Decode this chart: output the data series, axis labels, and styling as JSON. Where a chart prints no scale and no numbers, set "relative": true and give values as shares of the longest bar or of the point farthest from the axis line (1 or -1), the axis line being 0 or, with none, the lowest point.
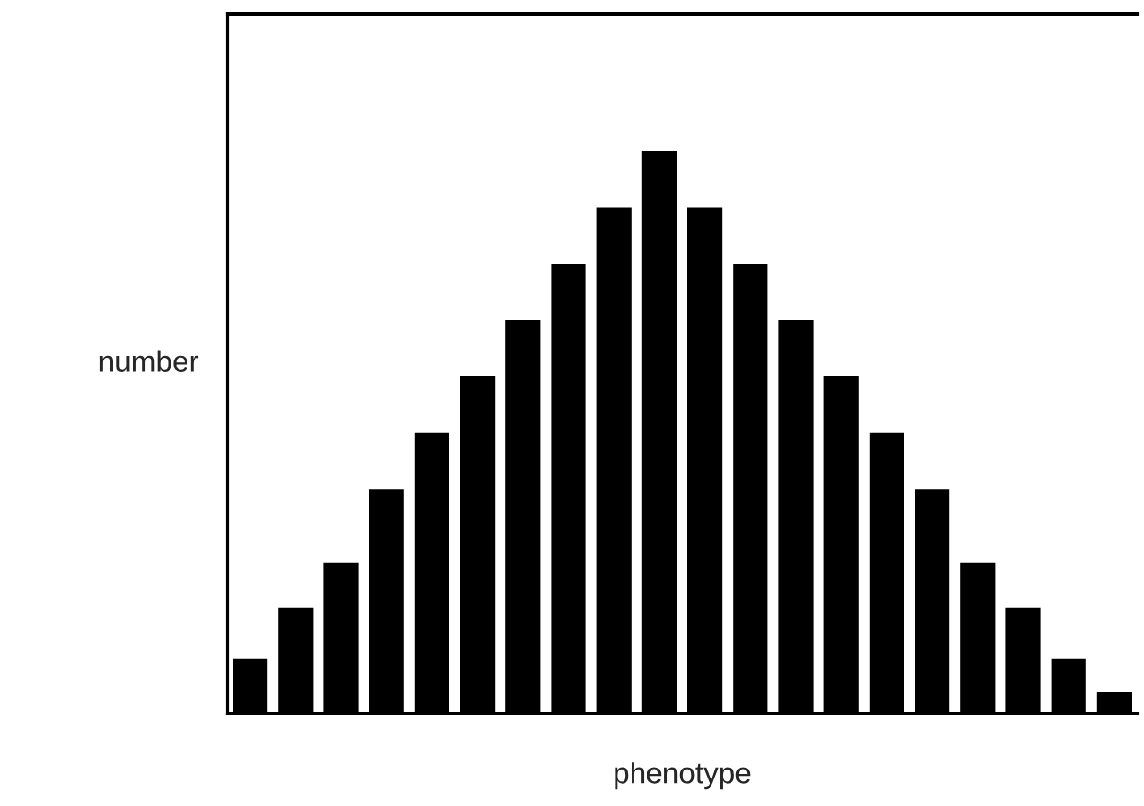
{
  "chart_data": {
    "type": "bar",
    "relative": true,
    "xlabel": "phenotype",
    "ylabel": "number",
    "categories": [
      null,
      null,
      null,
      null,
      null,
      null,
      null,
      null,
      null,
      null,
      null,
      null,
      null,
      null,
      null,
      null,
      null,
      null,
      null,
      null
    ],
    "values": [
      0.1,
      0.19,
      0.27,
      0.4,
      0.5,
      0.6,
      0.7,
      0.8,
      0.9,
      1,
      0.9,
      0.8,
      0.7,
      0.6,
      0.5,
      0.4,
      0.27,
      0.19,
      0.1,
      0.04
    ],
    "color": "#000000",
    "grid": false,
    "legend": false
  }
}
